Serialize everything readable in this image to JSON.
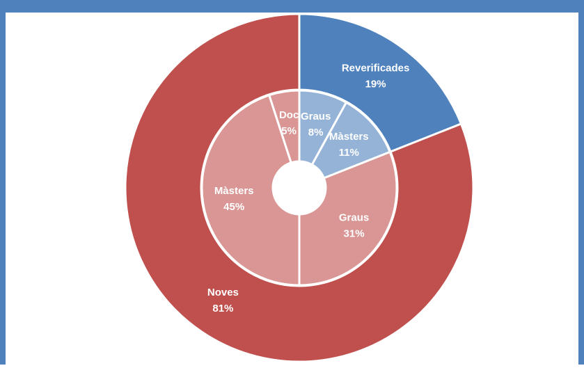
{
  "chart_data": {
    "type": "nested-donut",
    "rings": [
      {
        "labels": [
          "Reverificades",
          "Noves"
        ],
        "values": [
          19,
          81
        ],
        "value_labels": [
          "19%",
          "81%"
        ],
        "colors": [
          "#4f81bd",
          "#c0504d"
        ]
      },
      {
        "labels": [
          "Graus",
          "Màsters",
          "Graus",
          "Màsters",
          "Doc"
        ],
        "values": [
          8,
          11,
          31,
          45,
          5
        ],
        "value_labels": [
          "8%",
          "11%",
          "31%",
          "45%",
          "5%"
        ],
        "colors": [
          "#95b3d7",
          "#95b3d7",
          "#d99694",
          "#d99694",
          "#d99694"
        ]
      }
    ]
  }
}
